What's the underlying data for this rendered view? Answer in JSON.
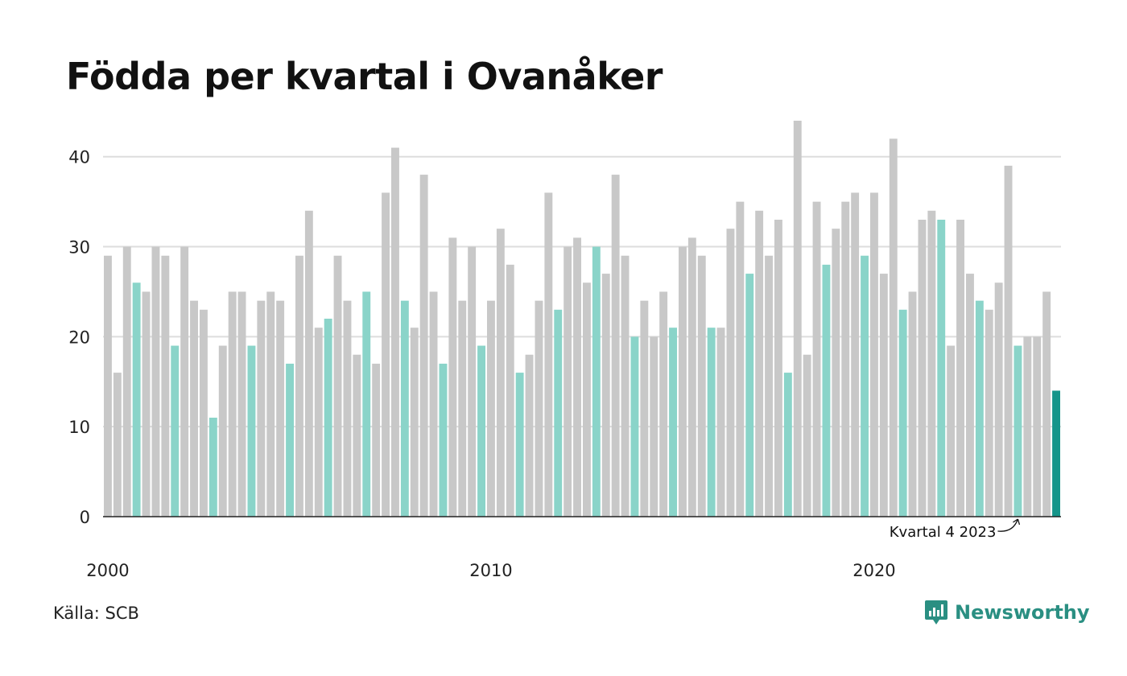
{
  "title": "Födda per kvartal i Ovanåker",
  "source": "Källa: SCB",
  "brand": {
    "name": "Newsworthy",
    "icon": "newsworthy-logo-icon"
  },
  "colors": {
    "default": "#c8c8c8",
    "quarter4": "#8ad4c9",
    "latest": "#15958a",
    "grid": "#dddddd",
    "axis": "#222222"
  },
  "chart_data": {
    "type": "bar",
    "title": "Födda per kvartal i Ovanåker",
    "xlabel": "",
    "ylabel": "",
    "ylim": [
      0,
      44
    ],
    "y_ticks": [
      0,
      10,
      20,
      30,
      40
    ],
    "x_tick_labels": [
      {
        "label": "2000",
        "index": 0
      },
      {
        "label": "2010",
        "index": 40
      },
      {
        "label": "2020",
        "index": 80
      }
    ],
    "grid": true,
    "annotation": {
      "text": "Kvartal 4 2023",
      "index": 95
    },
    "highlight": "Kvartal 4 (turkos), senaste kvartalet (mörk)",
    "categories": [
      "2000 K1",
      "2000 K2",
      "2000 K3",
      "2000 K4",
      "2001 K1",
      "2001 K2",
      "2001 K3",
      "2001 K4",
      "2002 K1",
      "2002 K2",
      "2002 K3",
      "2002 K4",
      "2003 K1",
      "2003 K2",
      "2003 K3",
      "2003 K4",
      "2004 K1",
      "2004 K2",
      "2004 K3",
      "2004 K4",
      "2005 K1",
      "2005 K2",
      "2005 K3",
      "2005 K4",
      "2006 K1",
      "2006 K2",
      "2006 K3",
      "2006 K4",
      "2007 K1",
      "2007 K2",
      "2007 K3",
      "2007 K4",
      "2008 K1",
      "2008 K2",
      "2008 K3",
      "2008 K4",
      "2009 K1",
      "2009 K2",
      "2009 K3",
      "2009 K4",
      "2010 K1",
      "2010 K2",
      "2010 K3",
      "2010 K4",
      "2011 K1",
      "2011 K2",
      "2011 K3",
      "2011 K4",
      "2012 K1",
      "2012 K2",
      "2012 K3",
      "2012 K4",
      "2013 K1",
      "2013 K2",
      "2013 K3",
      "2013 K4",
      "2014 K1",
      "2014 K2",
      "2014 K3",
      "2014 K4",
      "2015 K1",
      "2015 K2",
      "2015 K3",
      "2015 K4",
      "2016 K1",
      "2016 K2",
      "2016 K3",
      "2016 K4",
      "2017 K1",
      "2017 K2",
      "2017 K3",
      "2017 K4",
      "2018 K1",
      "2018 K2",
      "2018 K3",
      "2018 K4",
      "2019 K1",
      "2019 K2",
      "2019 K3",
      "2019 K4",
      "2020 K1",
      "2020 K2",
      "2020 K3",
      "2020 K4",
      "2021 K1",
      "2021 K2",
      "2021 K3",
      "2021 K4",
      "2022 K1",
      "2022 K2",
      "2022 K3",
      "2022 K4",
      "2023 K1",
      "2023 K2",
      "2023 K3",
      "2023 K4",
      "2024 K1",
      "2024 K2",
      "2024 K3",
      "2024 K4"
    ],
    "values": [
      29,
      16,
      30,
      26,
      25,
      30,
      29,
      19,
      30,
      24,
      23,
      11,
      19,
      25,
      25,
      19,
      24,
      25,
      24,
      17,
      29,
      34,
      21,
      22,
      29,
      24,
      18,
      25,
      17,
      36,
      41,
      24,
      21,
      38,
      25,
      17,
      31,
      24,
      30,
      19,
      24,
      32,
      28,
      16,
      18,
      24,
      36,
      23,
      30,
      31,
      26,
      30,
      27,
      38,
      29,
      20,
      24,
      20,
      25,
      21,
      30,
      31,
      29,
      21,
      21,
      32,
      35,
      27,
      34,
      29,
      33,
      16,
      44,
      18,
      35,
      28,
      32,
      35,
      36,
      29,
      36,
      27,
      42,
      23,
      25,
      33,
      34,
      33,
      19,
      33,
      27,
      24,
      23,
      26,
      39,
      19,
      20,
      20,
      25,
      14
    ]
  }
}
